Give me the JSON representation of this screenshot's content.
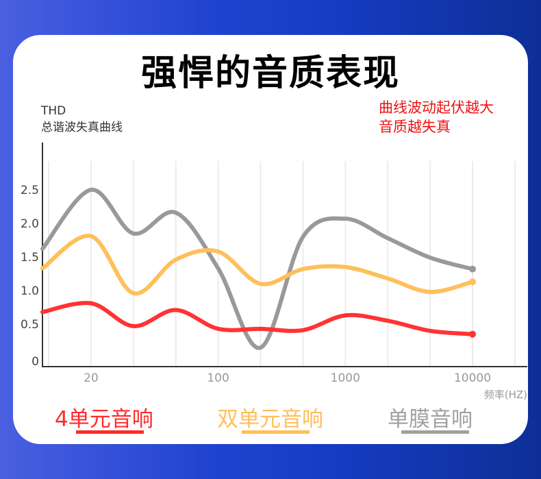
{
  "title": "强悍的音质表现",
  "note": [
    "曲线波动起伏越大",
    "音质越失真"
  ],
  "chart_data": {
    "type": "line",
    "title": "强悍的音质表现",
    "ylabel": [
      "THD",
      "总谐波失真曲线"
    ],
    "xlabel": "频率(HZ)",
    "x": [
      0,
      1,
      2,
      3,
      4,
      5,
      6,
      7,
      8,
      9,
      10
    ],
    "x_ticks": [
      {
        "pos": 1,
        "label": "20"
      },
      {
        "pos": 4,
        "label": "100"
      },
      {
        "pos": 7,
        "label": "1000"
      },
      {
        "pos": 10,
        "label": "10000"
      }
    ],
    "y_ticks": [
      "0",
      "0.5",
      "1.0",
      "1.5",
      "2.0",
      "2.5"
    ],
    "y_tick_values": [
      0,
      0.5,
      1.0,
      1.5,
      2.0,
      2.5
    ],
    "ylim": [
      0,
      3
    ],
    "grid": "vertical",
    "series": [
      {
        "name": "单膜音响",
        "color": "#999999",
        "values": [
          1.62,
          2.5,
          1.85,
          2.16,
          1.33,
          0.15,
          1.8,
          2.07,
          1.78,
          1.49,
          1.32
        ]
      },
      {
        "name": "双单元音响",
        "color": "#ffbf5a",
        "values": [
          1.33,
          1.81,
          0.96,
          1.46,
          1.58,
          1.1,
          1.32,
          1.35,
          1.18,
          0.98,
          1.13
        ]
      },
      {
        "name": "4单元音响",
        "color": "#ff3333",
        "values": [
          0.68,
          0.81,
          0.47,
          0.71,
          0.43,
          0.43,
          0.41,
          0.63,
          0.55,
          0.4,
          0.35
        ]
      }
    ]
  },
  "legend": [
    {
      "label": "4单元音响",
      "color": "#ff2a2a"
    },
    {
      "label": "双单元音响",
      "color": "#ffbf5a"
    },
    {
      "label": "单膜音响",
      "color": "#a0a0a0"
    }
  ]
}
